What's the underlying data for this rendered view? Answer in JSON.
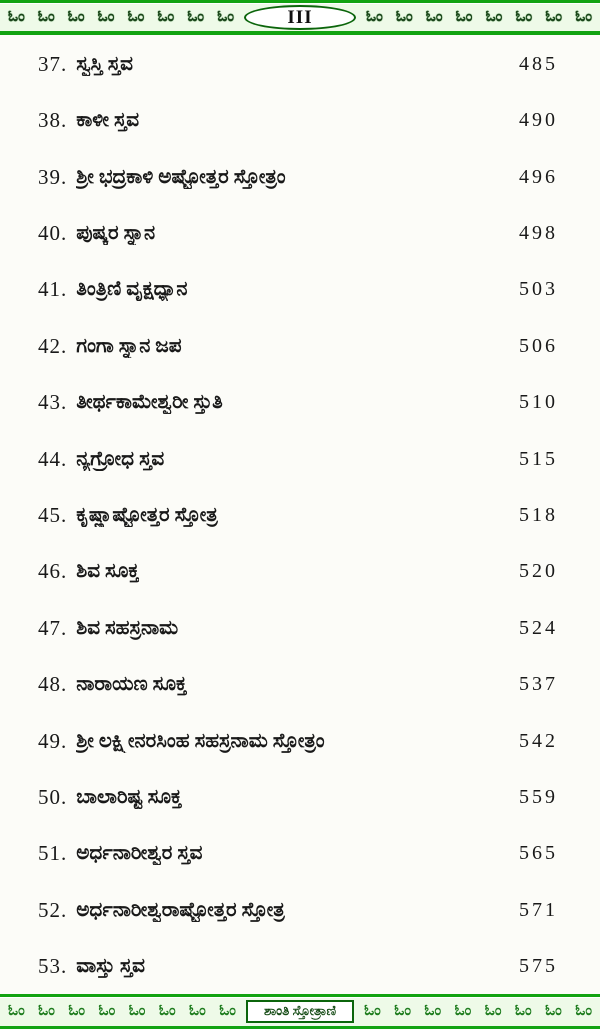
{
  "page": {
    "number_label": "III",
    "footer_title": "ಶಾಂತಿ ಸ್ತೋತ್ರಾಣಿ"
  },
  "decoration": {
    "om_symbol": "ಓಂ",
    "header_left_count": 8,
    "header_right_count": 8,
    "footer_left_count": 8,
    "footer_right_count": 8
  },
  "colors": {
    "accent_green": "#12a312",
    "band_bg": "#eefae8",
    "om_dark": "#1b431b",
    "om_green": "#1f7d1f",
    "ink": "#191919",
    "box_border": "#0b650b"
  },
  "toc": {
    "entries": [
      {
        "number": 37,
        "title": "ಸ್ವಸ್ತಿ ಸ್ತವ",
        "page": 485
      },
      {
        "number": 38,
        "title": "ಕಾಳೀ ಸ್ತವ",
        "page": 490
      },
      {
        "number": 39,
        "title": "ಶ್ರೀ ಭದ್ರಕಾಳಿ ಅಷ್ಟೋತ್ತರ ಸ್ತೋತ್ರಂ",
        "page": 496
      },
      {
        "number": 40,
        "title": "ಪುಷ್ಕರ ಸ್ನಾನ",
        "page": 498
      },
      {
        "number": 41,
        "title": "ತಿಂತ್ರಿಣಿ ವೃಕ್ಷಧ್ಯಾನ",
        "page": 503
      },
      {
        "number": 42,
        "title": "ಗಂಗಾ ಸ್ನಾನ ಜಪ",
        "page": 506
      },
      {
        "number": 43,
        "title": "ತೀರ್ಥಕಾಮೇಶ್ವರೀ ಸ್ತುತಿ",
        "page": 510
      },
      {
        "number": 44,
        "title": "ನ್ಯಗ್ರೋಧ ಸ್ತವ",
        "page": 515
      },
      {
        "number": 45,
        "title": "ಕೃಷ್ಣಾಷ್ಟೋತ್ತರ ಸ್ತೋತ್ರ",
        "page": 518
      },
      {
        "number": 46,
        "title": "ಶಿವ ಸೂಕ್ತ",
        "page": 520
      },
      {
        "number": 47,
        "title": "ಶಿವ ಸಹಸ್ರನಾಮ",
        "page": 524
      },
      {
        "number": 48,
        "title": "ನಾರಾಯಣ ಸೂಕ್ತ",
        "page": 537
      },
      {
        "number": 49,
        "title": "ಶ್ರೀ ಲಕ್ಷ್ಮೀನರಸಿಂಹ ಸಹಸ್ರನಾಮ ಸ್ತೋತ್ರಂ",
        "page": 542
      },
      {
        "number": 50,
        "title": "ಬಾಲಾರಿಷ್ಟ ಸೂಕ್ತ",
        "page": 559
      },
      {
        "number": 51,
        "title": "ಅರ್ಧನಾರೀಶ್ವರ ಸ್ತವ",
        "page": 565
      },
      {
        "number": 52,
        "title": "ಅರ್ಧನಾರೀಶ್ವರಾಷ್ಟೋತ್ತರ ಸ್ತೋತ್ರ",
        "page": 571
      },
      {
        "number": 53,
        "title": "ವಾಸ್ತು ಸ್ತವ",
        "page": 575
      }
    ]
  }
}
